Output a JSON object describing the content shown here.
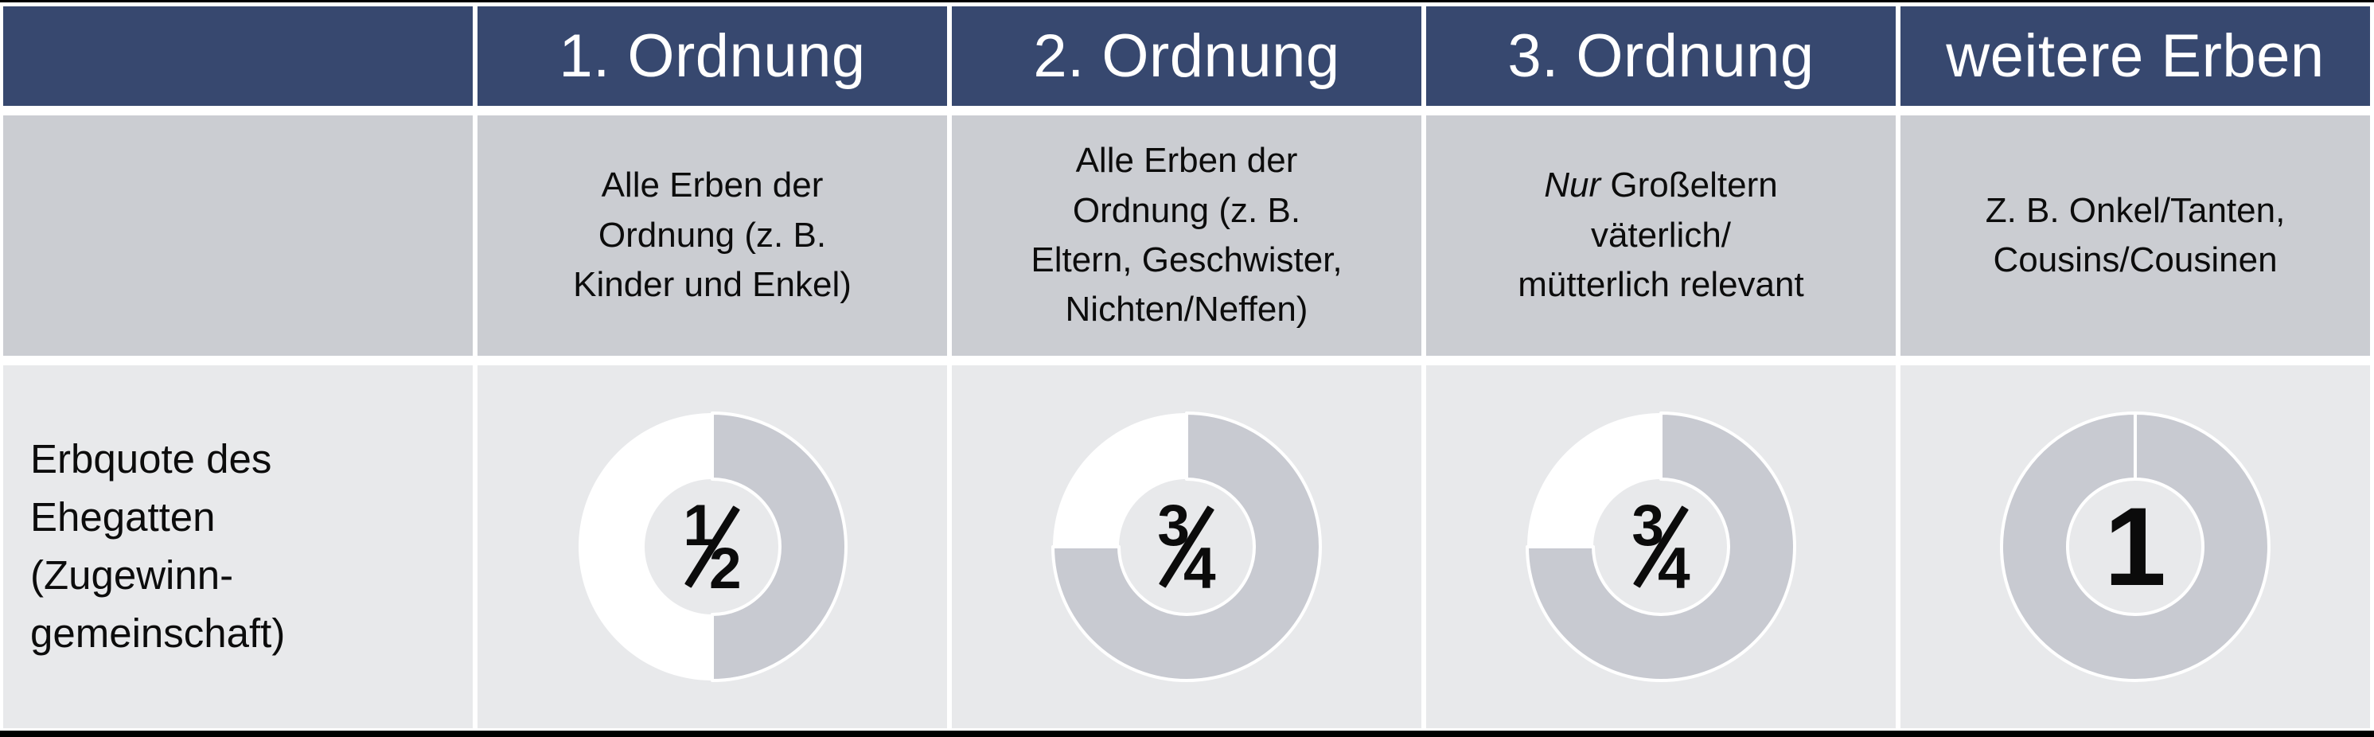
{
  "table": {
    "row_label": "Erbquote des\nEhegatten\n(Zugewinn-\ngemeinschaft)",
    "columns": [
      {
        "header": "1. Ordnung",
        "description": "Alle Erben der\nOrdnung (z. B.\nKinder und Enkel)",
        "quota_numerator": "1",
        "quota_denominator": "2",
        "quota_value": 0.5
      },
      {
        "header": "2. Ordnung",
        "description": "Alle Erben der\nOrdnung (z. B.\nEltern, Geschwister,\nNichten/Neffen)",
        "quota_numerator": "3",
        "quota_denominator": "4",
        "quota_value": 0.75
      },
      {
        "header": "3. Ordnung",
        "description_italic_prefix": "Nur",
        "description": " Großeltern\nväterlich/\nmütterlich relevant",
        "quota_numerator": "3",
        "quota_denominator": "4",
        "quota_value": 0.75
      },
      {
        "header": "weitere Erben",
        "description": "Z. B. Onkel/Tanten,\nCousins/Cousinen",
        "quota_whole": "1",
        "quota_value": 1
      }
    ]
  },
  "colors": {
    "header_bg": "#37486F",
    "header_text": "#FFFFFF",
    "desc_bg": "#CBCDD2",
    "value_bg": "#E8E9EB",
    "donut_filled": "#C8CAD1",
    "donut_remainder": "#FFFFFF",
    "border_black": "#000000"
  },
  "chart_data": {
    "type": "pie",
    "variant": "donut",
    "title": "Erbquote des Ehegatten (Zugewinngemeinschaft)",
    "categories": [
      "1. Ordnung",
      "2. Ordnung",
      "3. Ordnung",
      "weitere Erben"
    ],
    "values": [
      0.5,
      0.75,
      0.75,
      1
    ],
    "labels": [
      "1/2",
      "3/4",
      "3/4",
      "1"
    ],
    "start_angle_deg": 0,
    "direction": "clockwise",
    "filled_color": "#C8CAD1",
    "remainder_color": "#FFFFFF",
    "legend": "none"
  }
}
